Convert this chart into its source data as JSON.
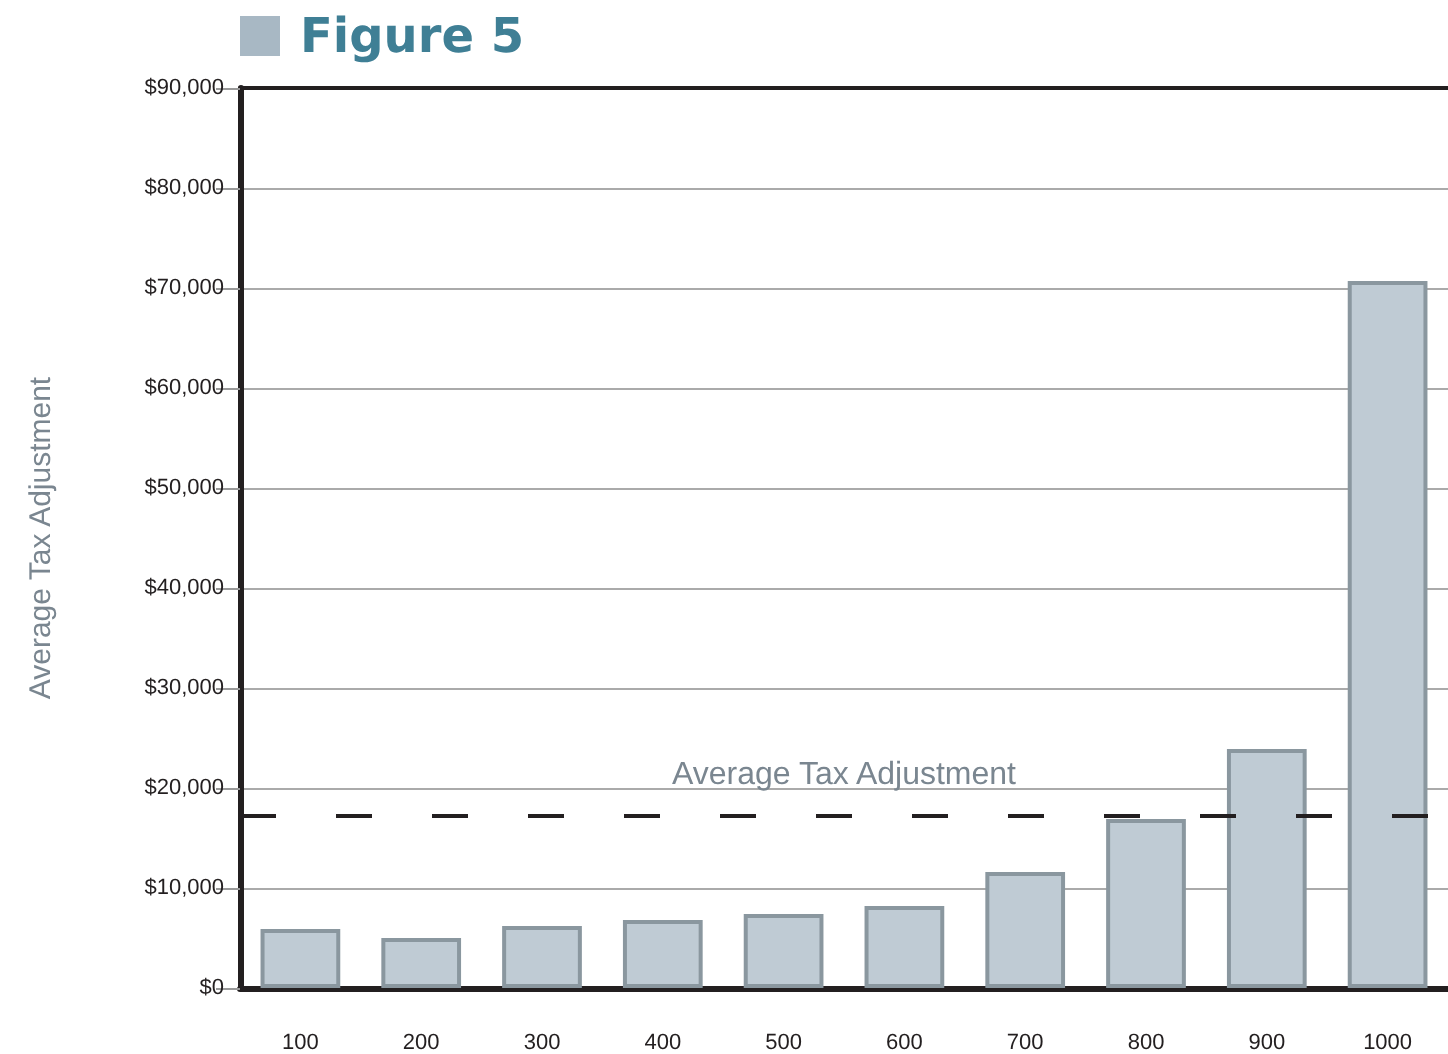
{
  "chart_data": {
    "type": "bar",
    "title": "Figure 5",
    "ylabel": "Average Tax Adjustment",
    "categories": [
      "100",
      "200",
      "300",
      "400",
      "500",
      "600",
      "700",
      "800",
      "900",
      "1000"
    ],
    "values": [
      5900,
      5000,
      6200,
      6800,
      7400,
      8200,
      11600,
      16900,
      23900,
      70700
    ],
    "color": "#bfcbd4",
    "ylim": [
      0,
      90000
    ],
    "yticks": [
      {
        "value": 0,
        "label": "$0"
      },
      {
        "value": 10000,
        "label": "$10,000"
      },
      {
        "value": 20000,
        "label": "$20,000"
      },
      {
        "value": 30000,
        "label": "$30,000"
      },
      {
        "value": 40000,
        "label": "$40,000"
      },
      {
        "value": 50000,
        "label": "$50,000"
      },
      {
        "value": 60000,
        "label": "$60,000"
      },
      {
        "value": 70000,
        "label": "$70,000"
      },
      {
        "value": 80000,
        "label": "$80,000"
      },
      {
        "value": 90000,
        "label": "$90,000"
      }
    ],
    "grid": "y",
    "ref_lines": [
      {
        "axis": "y",
        "value": 17300,
        "label": "Average Tax Adjustment",
        "color": "#231f20",
        "line_style": "dashed"
      }
    ]
  }
}
